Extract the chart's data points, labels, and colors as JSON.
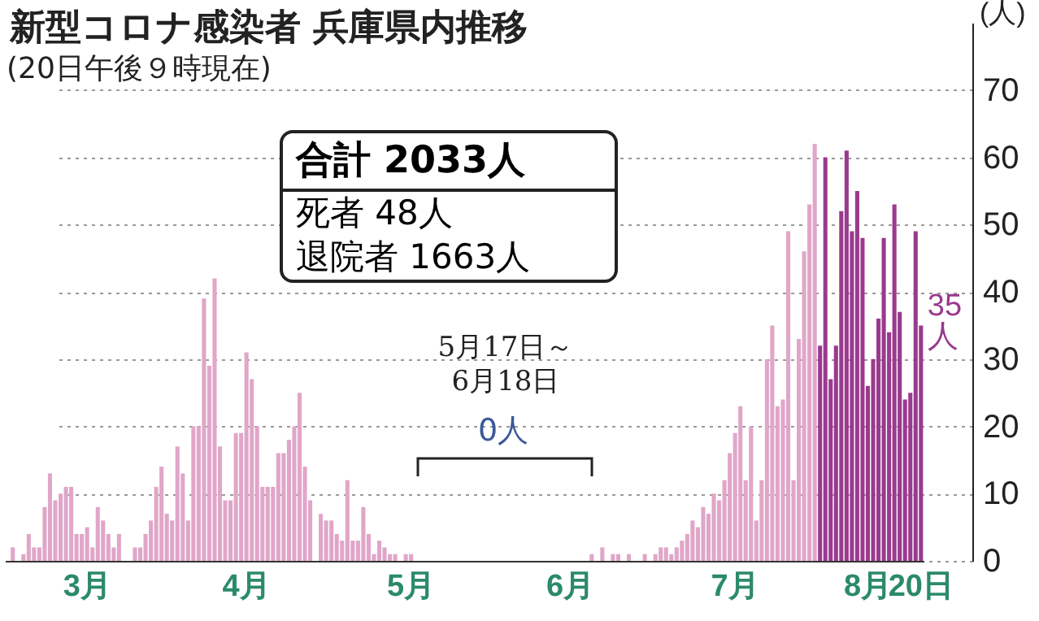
{
  "chart_data": {
    "type": "bar",
    "title": "新型コロナ感染者 兵庫県内推移",
    "subtitle": "(20日午後９時現在)",
    "ylabel": "(人)",
    "annotations": [
      "合計 2033人",
      "死者 48人",
      "退院者 1663人",
      "5月17日～6月18日",
      "0人"
    ],
    "categories": [
      null,
      null,
      null,
      null,
      null,
      null,
      null,
      null,
      null,
      null,
      null,
      null,
      null,
      null,
      null,
      "3月",
      null,
      null,
      null,
      null,
      null,
      null,
      null,
      null,
      null,
      null,
      null,
      null,
      null,
      null,
      null,
      null,
      null,
      null,
      null,
      null,
      null,
      null,
      null,
      null,
      null,
      null,
      null,
      null,
      null,
      "4月",
      null,
      null,
      null,
      null,
      null,
      null,
      null,
      null,
      null,
      null,
      null,
      null,
      null,
      null,
      null,
      null,
      null,
      null,
      null,
      null,
      null,
      null,
      null,
      null,
      null,
      null,
      null,
      null,
      null,
      null,
      "5月",
      null,
      null,
      null,
      null,
      null,
      null,
      null,
      null,
      null,
      null,
      null,
      null,
      null,
      null,
      null,
      null,
      null,
      null,
      null,
      null,
      null,
      null,
      null,
      null,
      null,
      null,
      null,
      null,
      null,
      "6月",
      null,
      null,
      null,
      null,
      null,
      null,
      null,
      null,
      null,
      null,
      null,
      null,
      null,
      null,
      null,
      null,
      null,
      null,
      null,
      null,
      null,
      null,
      null,
      null,
      null,
      null,
      null,
      null,
      null,
      null,
      "7月",
      null,
      null,
      null,
      null,
      null,
      null,
      null,
      null,
      null,
      null,
      null,
      null,
      null,
      null,
      null,
      null,
      null,
      null,
      null,
      null,
      null,
      null,
      null,
      null,
      "8月",
      null,
      null,
      null,
      null,
      null,
      null,
      null,
      null,
      null,
      "20日"
    ],
    "series": [
      {
        "color": "#e0a6c8",
        "values": [
          0,
          2,
          0,
          1,
          4,
          2,
          2,
          8,
          13,
          9,
          10,
          11,
          11,
          4,
          4,
          5,
          2,
          8,
          6,
          4,
          2,
          4,
          0,
          0,
          2,
          2,
          4,
          6,
          11,
          14,
          7,
          6,
          17,
          13,
          6,
          20,
          20,
          39,
          29,
          42,
          17,
          9,
          9,
          19,
          19,
          31,
          27,
          20,
          11,
          11,
          11,
          16,
          16,
          18,
          20,
          25,
          14,
          9,
          0,
          7,
          6,
          6,
          4,
          3,
          12,
          3,
          3,
          8,
          4,
          1,
          3,
          2,
          1,
          1,
          0,
          1,
          1,
          0,
          0,
          0,
          0,
          0,
          0,
          0,
          0,
          0,
          0,
          0,
          0,
          0,
          0,
          0,
          0,
          0,
          0,
          0,
          0,
          0,
          0,
          0,
          0,
          0,
          0,
          0,
          0,
          0,
          0,
          0,
          0,
          0,
          1,
          0,
          2,
          0,
          1,
          1,
          0,
          1,
          0,
          0,
          1,
          0,
          1,
          2,
          2,
          1,
          2,
          3,
          4,
          6,
          5,
          8,
          7,
          10,
          9,
          12,
          16,
          19,
          23,
          12,
          20,
          6,
          12,
          30,
          35,
          23,
          24,
          49,
          12,
          33,
          46,
          53,
          62,
          null,
          null,
          null,
          null,
          null,
          null,
          null,
          null,
          null,
          null,
          null,
          null,
          null,
          null,
          null,
          null,
          null,
          null,
          null,
          null
        ]
      },
      {
        "color": "#9a3a8e",
        "values": [
          null,
          null,
          null,
          null,
          null,
          null,
          null,
          null,
          null,
          null,
          null,
          null,
          null,
          null,
          null,
          null,
          null,
          null,
          null,
          null,
          null,
          null,
          null,
          null,
          null,
          null,
          null,
          null,
          null,
          null,
          null,
          null,
          null,
          null,
          null,
          null,
          null,
          null,
          null,
          null,
          null,
          null,
          null,
          null,
          null,
          null,
          null,
          null,
          null,
          null,
          null,
          null,
          null,
          null,
          null,
          null,
          null,
          null,
          null,
          null,
          null,
          null,
          null,
          null,
          null,
          null,
          null,
          null,
          null,
          null,
          null,
          null,
          null,
          null,
          null,
          null,
          null,
          null,
          null,
          null,
          null,
          null,
          null,
          null,
          null,
          null,
          null,
          null,
          null,
          null,
          null,
          null,
          null,
          null,
          null,
          null,
          null,
          null,
          null,
          null,
          null,
          null,
          null,
          null,
          null,
          null,
          null,
          null,
          null,
          null,
          null,
          null,
          null,
          null,
          null,
          null,
          null,
          null,
          null,
          null,
          null,
          null,
          null,
          null,
          null,
          null,
          null,
          null,
          null,
          null,
          null,
          null,
          null,
          null,
          null,
          null,
          null,
          null,
          null,
          null,
          null,
          null,
          null,
          null,
          null,
          null,
          null,
          null,
          null,
          null,
          null,
          null,
          null,
          32,
          60,
          27,
          32,
          52,
          61,
          49,
          55,
          48,
          26,
          30,
          36,
          48,
          34,
          53,
          37,
          24,
          25,
          49,
          35
        ],
        "value_labels": [
          null,
          null,
          null,
          null,
          null,
          null,
          null,
          null,
          null,
          null,
          null,
          null,
          null,
          null,
          null,
          null,
          null,
          null,
          null,
          null,
          null,
          null,
          null,
          null,
          null,
          null,
          null,
          null,
          null,
          null,
          null,
          null,
          null,
          null,
          null,
          null,
          null,
          null,
          null,
          null,
          null,
          null,
          null,
          null,
          null,
          null,
          null,
          null,
          null,
          null,
          null,
          null,
          null,
          null,
          null,
          null,
          null,
          null,
          null,
          null,
          null,
          null,
          null,
          null,
          null,
          null,
          null,
          null,
          null,
          null,
          null,
          null,
          null,
          null,
          null,
          null,
          null,
          null,
          null,
          null,
          null,
          null,
          null,
          null,
          null,
          null,
          null,
          null,
          null,
          null,
          null,
          null,
          null,
          null,
          null,
          null,
          null,
          null,
          null,
          null,
          null,
          null,
          null,
          null,
          null,
          null,
          null,
          null,
          null,
          null,
          null,
          null,
          null,
          null,
          null,
          null,
          null,
          null,
          null,
          null,
          null,
          null,
          null,
          null,
          null,
          null,
          null,
          null,
          null,
          null,
          null,
          null,
          null,
          null,
          null,
          null,
          null,
          null,
          null,
          null,
          null,
          null,
          null,
          null,
          null,
          null,
          null,
          null,
          null,
          null,
          null,
          null,
          null,
          null,
          null,
          null,
          null,
          null,
          null,
          null,
          null,
          null,
          null,
          null,
          null,
          null,
          null,
          null,
          null,
          null,
          null,
          null,
          "35人"
        ]
      }
    ],
    "ylim": [
      0,
      80
    ],
    "yticks": [
      0,
      10,
      20,
      30,
      40,
      50,
      60,
      70
    ],
    "grid": true
  }
}
